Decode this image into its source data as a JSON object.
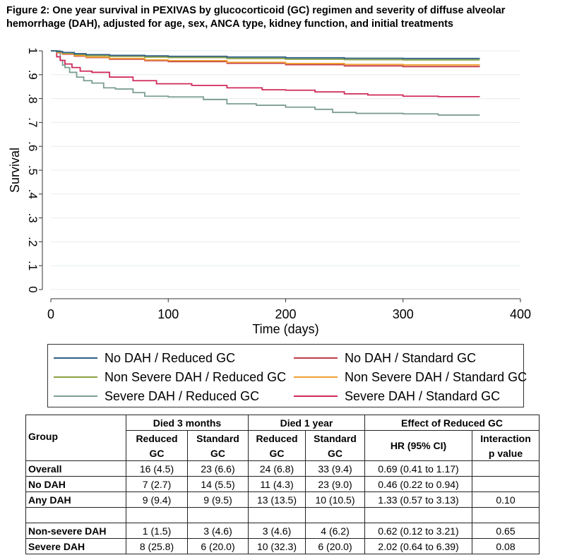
{
  "title_lines": [
    "Figure 2: One year survival in PEXIVAS by glucocorticoid (GC) regimen and severity of diffuse alveolar",
    "hemorrhage (DAH), adjusted for age, sex, ANCA type, kidney function, and initial treatments"
  ],
  "chart_data": {
    "type": "line",
    "title": "Figure 2: One year survival in PEXIVAS by glucocorticoid (GC) regimen and severity of diffuse alveolar hemorrhage (DAH), adjusted for age, sex, ANCA type, kidney function, and initial treatments",
    "xlabel": "Time (days)",
    "ylabel": "Survival",
    "xlim": [
      0,
      400
    ],
    "ylim": [
      0,
      1
    ],
    "x_ticks": [
      0,
      100,
      200,
      300,
      400
    ],
    "x_tick_labels": [
      "0",
      "100",
      "200",
      "300",
      "400"
    ],
    "y_ticks": [
      0,
      0.1,
      0.2,
      0.3,
      0.4,
      0.5,
      0.6,
      0.7,
      0.8,
      0.9,
      1
    ],
    "y_tick_labels": [
      "0",
      ".1",
      ".2",
      ".3",
      ".4",
      ".5",
      ".6",
      ".7",
      ".8",
      ".9",
      "1"
    ],
    "grid": true,
    "legend_position": "bottom",
    "series": [
      {
        "name": "No DAH / Reduced GC",
        "color": "#2f5f85",
        "x": [
          0,
          5,
          10,
          20,
          30,
          50,
          80,
          100,
          150,
          200,
          250,
          300,
          365
        ],
        "y": [
          1,
          0.997,
          0.993,
          0.988,
          0.984,
          0.981,
          0.979,
          0.977,
          0.974,
          0.971,
          0.969,
          0.968,
          0.967
        ]
      },
      {
        "name": "No DAH / Standard GC",
        "color": "#c23a4a",
        "x": [
          0,
          5,
          10,
          20,
          30,
          50,
          80,
          100,
          150,
          200,
          250,
          300,
          365
        ],
        "y": [
          1,
          0.992,
          0.986,
          0.978,
          0.972,
          0.965,
          0.959,
          0.955,
          0.948,
          0.942,
          0.937,
          0.934,
          0.932
        ]
      },
      {
        "name": "Non Severe DAH / Reduced GC",
        "color": "#8aa341",
        "x": [
          0,
          5,
          10,
          20,
          30,
          50,
          80,
          100,
          150,
          200,
          250,
          300,
          365
        ],
        "y": [
          1,
          0.996,
          0.991,
          0.985,
          0.98,
          0.977,
          0.974,
          0.972,
          0.968,
          0.965,
          0.963,
          0.962,
          0.961
        ]
      },
      {
        "name": "Non Severe DAH / Standard GC",
        "color": "#f0a030",
        "x": [
          0,
          5,
          10,
          20,
          30,
          50,
          80,
          100,
          150,
          200,
          250,
          300,
          365
        ],
        "y": [
          1,
          0.993,
          0.988,
          0.98,
          0.974,
          0.968,
          0.962,
          0.959,
          0.952,
          0.947,
          0.943,
          0.941,
          0.94
        ]
      },
      {
        "name": "Severe DAH / Reduced GC",
        "color": "#7c9e91",
        "x": [
          0,
          8,
          10,
          12,
          16,
          22,
          28,
          35,
          45,
          55,
          70,
          80,
          100,
          130,
          150,
          175,
          200,
          225,
          240,
          260,
          300,
          330,
          365
        ],
        "y": [
          1,
          0.96,
          0.94,
          0.93,
          0.91,
          0.89,
          0.875,
          0.865,
          0.845,
          0.84,
          0.825,
          0.81,
          0.807,
          0.796,
          0.778,
          0.772,
          0.764,
          0.755,
          0.742,
          0.738,
          0.736,
          0.731,
          0.73
        ]
      },
      {
        "name": "Severe DAH / Standard GC",
        "color": "#d02a5a",
        "x": [
          0,
          5,
          8,
          12,
          18,
          25,
          35,
          50,
          70,
          90,
          120,
          150,
          180,
          200,
          225,
          250,
          270,
          300,
          330,
          365
        ],
        "y": [
          1,
          0.975,
          0.96,
          0.945,
          0.93,
          0.915,
          0.91,
          0.89,
          0.875,
          0.862,
          0.855,
          0.845,
          0.837,
          0.835,
          0.828,
          0.82,
          0.815,
          0.81,
          0.808,
          0.807
        ]
      }
    ]
  },
  "legend": [
    {
      "label": "No DAH / Reduced GC",
      "color": "#2f5f85"
    },
    {
      "label": "No DAH / Standard GC",
      "color": "#c23a4a"
    },
    {
      "label": "Non Severe DAH / Reduced GC",
      "color": "#8aa341"
    },
    {
      "label": "Non Severe DAH / Standard GC",
      "color": "#f0a030"
    },
    {
      "label": "Severe DAH / Reduced GC",
      "color": "#7c9e91"
    },
    {
      "label": "Severe DAH / Standard GC",
      "color": "#d02a5a"
    }
  ],
  "table": {
    "group_header": "Group",
    "died3_header": "Died 3 months",
    "died1_header": "Died 1 year",
    "effect_header": "Effect of Reduced GC",
    "reduced_label": "Reduced",
    "standard_label": "Standard",
    "gc_label": "GC",
    "hr_label": "HR (95% CI)",
    "interaction_label": "Interaction",
    "pvalue_label": "p value",
    "rows": [
      {
        "group": "Overall",
        "r3": "16 (4.5)",
        "s3": "23 (6.6)",
        "r1": "24 (6.8)",
        "s1": "33 (9.4)",
        "hr": "0.69 (0.41 to 1.17)",
        "p": ""
      },
      {
        "group": "No DAH",
        "r3": "7 (2.7)",
        "s3": "14 (5.5)",
        "r1": "11 (4.3)",
        "s1": "23 (9.0)",
        "hr": "0.46 (0.22 to 0.94)",
        "p": ""
      },
      {
        "group": "Any DAH",
        "r3": "9 (9.4)",
        "s3": "9 (9.5)",
        "r1": "13 (13.5)",
        "s1": "10 (10.5)",
        "hr": "1.33 (0.57 to 3.13)",
        "p": "0.10"
      },
      {
        "group": "",
        "r3": "",
        "s3": "",
        "r1": "",
        "s1": "",
        "hr": "",
        "p": ""
      },
      {
        "group": "Non-severe DAH",
        "r3": "1 (1.5)",
        "s3": "3 (4.6)",
        "r1": "3 (4.6)",
        "s1": "4 (6.2)",
        "hr": "0.62 (0.12 to 3.21)",
        "p": "0.65"
      },
      {
        "group": "Severe DAH",
        "r3": "8 (25.8)",
        "s3": "6 (20.0)",
        "r1": "10 (32.3)",
        "s1": "6 (20.0)",
        "hr": "2.02 (0.64 to 6.39)",
        "p": "0.08"
      }
    ]
  }
}
